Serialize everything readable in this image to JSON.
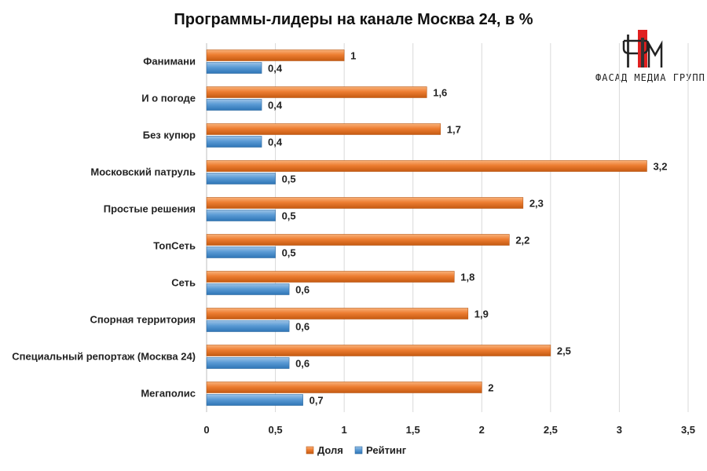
{
  "chart_data": {
    "type": "bar",
    "orientation": "horizontal",
    "title": "Программы-лидеры на канале Москва 24, в %",
    "categories": [
      "Фанимани",
      "И о погоде",
      "Без купюр",
      "Московский патруль",
      "Простые решения",
      "ТопСеть",
      "Сеть",
      "Спорная территория",
      "Специальный репортаж (Москва 24)",
      "Мегаполис"
    ],
    "series": [
      {
        "name": "Доля",
        "color": "#ed7d31",
        "values": [
          1,
          1.6,
          1.7,
          3.2,
          2.3,
          2.2,
          1.8,
          1.9,
          2.5,
          2
        ],
        "labels": [
          "1",
          "1,6",
          "1,7",
          "3,2",
          "2,3",
          "2,2",
          "1,8",
          "1,9",
          "2,5",
          "2"
        ]
      },
      {
        "name": "Рейтинг",
        "color": "#5b9bd5",
        "values": [
          0.4,
          0.4,
          0.4,
          0.5,
          0.5,
          0.5,
          0.6,
          0.6,
          0.6,
          0.7
        ],
        "labels": [
          "0,4",
          "0,4",
          "0,4",
          "0,5",
          "0,5",
          "0,5",
          "0,6",
          "0,6",
          "0,6",
          "0,7"
        ]
      }
    ],
    "xlim": [
      0,
      3.5
    ],
    "xticks": [
      0,
      0.5,
      1,
      1.5,
      2,
      2.5,
      3,
      3.5
    ],
    "xtick_labels": [
      "0",
      "0,5",
      "1",
      "1,5",
      "2",
      "2,5",
      "3",
      "3,5"
    ],
    "grid": true,
    "legend_position": "bottom"
  },
  "logo": {
    "text": "ФАСАД МЕДИА ГРУПП"
  }
}
